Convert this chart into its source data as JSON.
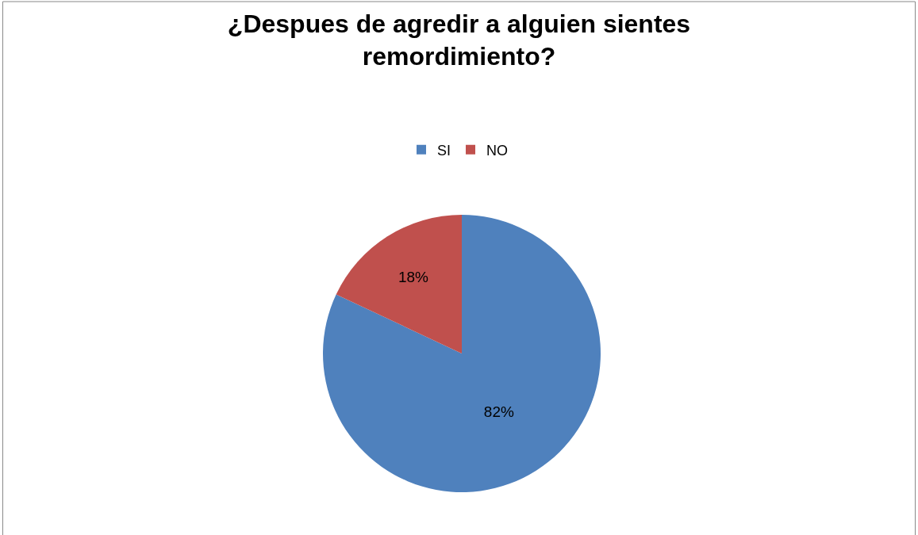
{
  "chart_data": {
    "type": "pie",
    "title": "¿Despues de agredir a alguien sientes remordimiento?",
    "categories": [
      "SI",
      "NO"
    ],
    "values": [
      82,
      18
    ],
    "colors": [
      "#4f81bd",
      "#c0504d"
    ],
    "value_labels": [
      "82%",
      "18%"
    ],
    "legend": "top"
  }
}
